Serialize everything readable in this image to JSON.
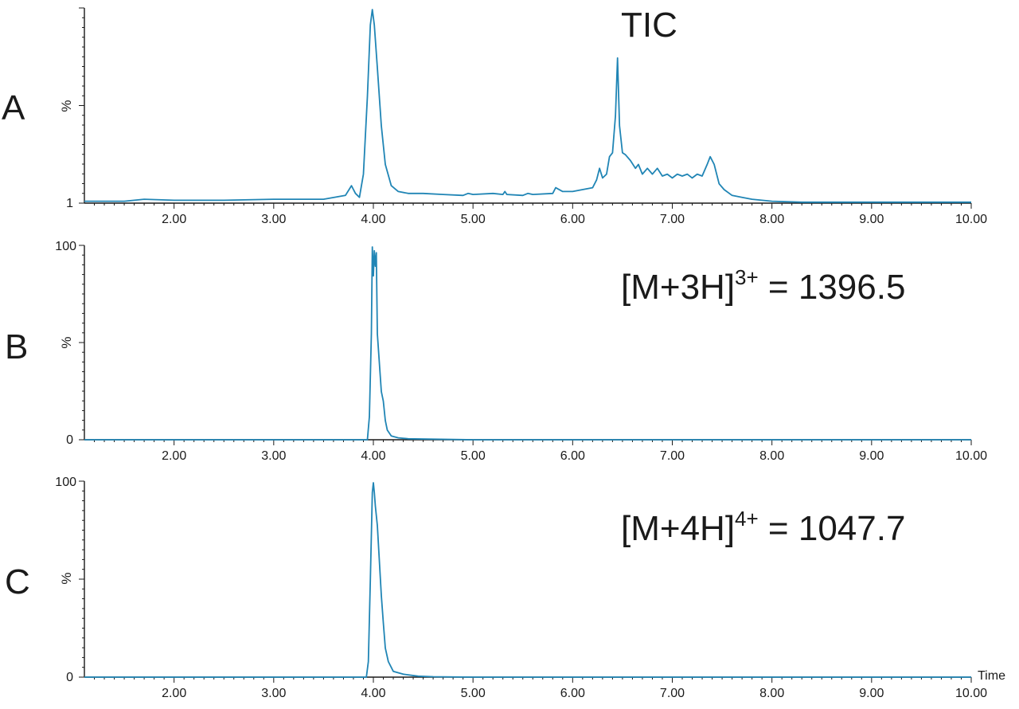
{
  "chart_data": [
    {
      "type": "line",
      "panel": "A",
      "annotation": "TIC",
      "ylabel": "%",
      "ytick_labels": [
        "1"
      ],
      "xlim": [
        1.1,
        10.0
      ],
      "xtick_labels": [
        "2.00",
        "3.00",
        "4.00",
        "5.00",
        "6.00",
        "7.00",
        "8.00",
        "9.00",
        "10.00"
      ],
      "series": [
        {
          "x": [
            1.1,
            1.5,
            1.7,
            2.0,
            2.5,
            3.0,
            3.5,
            3.72,
            3.78,
            3.82,
            3.86,
            3.9,
            3.94,
            3.97,
            3.99,
            4.01,
            4.04,
            4.08,
            4.12,
            4.18,
            4.25,
            4.35,
            4.5,
            4.7,
            4.9,
            4.95,
            5.0,
            5.2,
            5.3,
            5.32,
            5.34,
            5.5,
            5.55,
            5.6,
            5.8,
            5.83,
            5.9,
            6.0,
            6.1,
            6.2,
            6.24,
            6.27,
            6.3,
            6.34,
            6.37,
            6.4,
            6.43,
            6.45,
            6.47,
            6.5,
            6.53,
            6.58,
            6.63,
            6.66,
            6.7,
            6.75,
            6.8,
            6.85,
            6.9,
            6.95,
            7.0,
            7.05,
            7.1,
            7.15,
            7.2,
            7.25,
            7.3,
            7.35,
            7.38,
            7.42,
            7.47,
            7.52,
            7.6,
            7.7,
            7.8,
            8.0,
            8.3,
            8.6,
            9.0,
            10.0
          ],
          "y": [
            1,
            1,
            2,
            1.5,
            1.5,
            2,
            2,
            4,
            9,
            5,
            3,
            15,
            55,
            92,
            100,
            92,
            70,
            40,
            20,
            9,
            6,
            5,
            5,
            4.5,
            4,
            5,
            4.5,
            5,
            4.5,
            6,
            4.5,
            4,
            5,
            4.5,
            5,
            8,
            6,
            6,
            7,
            8,
            12,
            18,
            13,
            15,
            24,
            26,
            45,
            75,
            40,
            26,
            25,
            22,
            18,
            20,
            15,
            18,
            15,
            18,
            14,
            15,
            13,
            15,
            14,
            15,
            13,
            15,
            14,
            20,
            24,
            20,
            10,
            7,
            4,
            3,
            2,
            1,
            0.5,
            0.5,
            0.5,
            0.5
          ]
        }
      ]
    },
    {
      "type": "line",
      "panel": "B",
      "annotation": "[M+3H]3+ = 1396.5",
      "annotation_main": "[M+3H]",
      "annotation_sup": "3+",
      "annotation_tail": " = 1396.5",
      "ylabel": "%",
      "ylim": [
        0,
        100
      ],
      "ytick_labels": [
        "0",
        "100"
      ],
      "xlim": [
        1.1,
        10.0
      ],
      "xtick_labels": [
        "2.00",
        "3.00",
        "4.00",
        "5.00",
        "6.00",
        "7.00",
        "8.00",
        "9.00",
        "10.00"
      ],
      "series": [
        {
          "x": [
            1.1,
            3.9,
            3.94,
            3.96,
            3.98,
            3.99,
            4.0,
            4.01,
            4.02,
            4.03,
            4.04,
            4.06,
            4.08,
            4.1,
            4.12,
            4.14,
            4.18,
            4.25,
            4.35,
            5.0,
            10.0
          ],
          "y": [
            0,
            0,
            0,
            12,
            55,
            100,
            85,
            98,
            90,
            97,
            55,
            40,
            25,
            20,
            10,
            5,
            2,
            1,
            0.5,
            0,
            0
          ]
        }
      ]
    },
    {
      "type": "line",
      "panel": "C",
      "annotation": "[M+4H]4+ = 1047.7",
      "annotation_main": "[M+4H]",
      "annotation_sup": "4+",
      "annotation_tail": " = 1047.7",
      "ylabel": "%",
      "ylim": [
        0,
        100
      ],
      "ytick_labels": [
        "0",
        "100"
      ],
      "xlim": [
        1.1,
        10.0
      ],
      "xlabel": "Time",
      "xtick_labels": [
        "2.00",
        "3.00",
        "4.00",
        "5.00",
        "6.00",
        "7.00",
        "8.00",
        "9.00",
        "10.00"
      ],
      "series": [
        {
          "x": [
            1.1,
            3.9,
            3.93,
            3.95,
            3.97,
            3.99,
            4.0,
            4.01,
            4.02,
            4.04,
            4.06,
            4.08,
            4.1,
            4.12,
            4.15,
            4.2,
            4.3,
            4.45,
            4.6,
            5.0,
            10.0
          ],
          "y": [
            0,
            0,
            0,
            8,
            50,
            95,
            100,
            95,
            88,
            78,
            60,
            42,
            28,
            15,
            8,
            3,
            1.5,
            0.5,
            0.2,
            0,
            0
          ]
        }
      ]
    }
  ],
  "colors": {
    "trace": "#2085b5",
    "axis": "#1a1a1a"
  }
}
